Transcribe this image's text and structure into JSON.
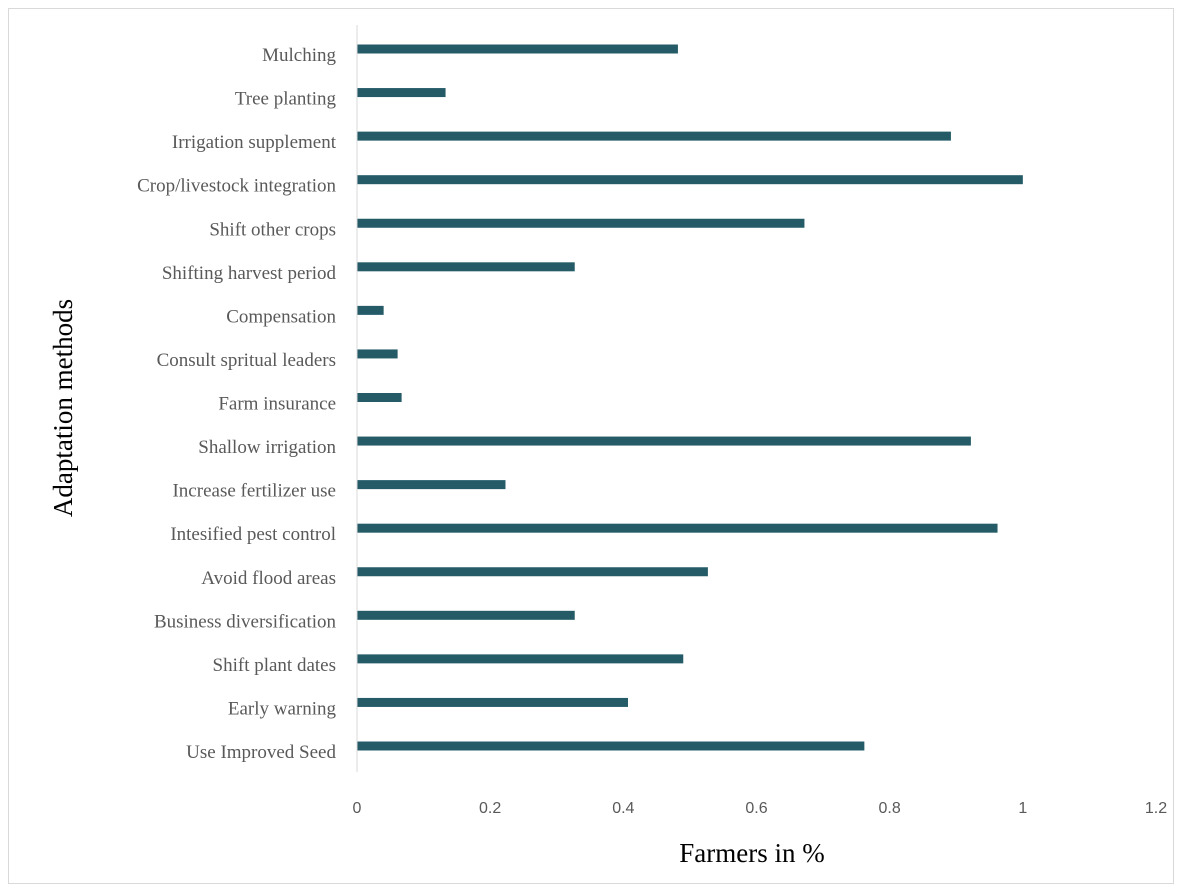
{
  "chart_data": {
    "type": "bar",
    "orientation": "horizontal",
    "categories": [
      "Mulching",
      "Tree planting",
      "Irrigation supplement",
      "Crop/livestock integration",
      "Shift other crops",
      "Shifting harvest period",
      "Compensation",
      "Consult spritual leaders",
      "Farm insurance",
      "Shallow irrigation",
      "Increase fertilizer use",
      "Intesified pest control",
      "Avoid flood areas",
      "Business diversification",
      "Shift plant dates",
      "Early warning",
      "Use Improved Seed"
    ],
    "values": [
      0.482,
      0.133,
      0.892,
      1.0,
      0.672,
      0.327,
      0.04,
      0.061,
      0.067,
      0.922,
      0.223,
      0.962,
      0.527,
      0.327,
      0.49,
      0.407,
      0.762
    ],
    "xlabel": "Farmers in %",
    "ylabel": "Adaptation methods",
    "xlim": [
      0,
      1.2
    ],
    "xticks": [
      "0",
      "0.2",
      "0.4",
      "0.6",
      "0.8",
      "1",
      "1.2"
    ],
    "grid": false,
    "legend": "none",
    "bar_color": "#245b67"
  }
}
